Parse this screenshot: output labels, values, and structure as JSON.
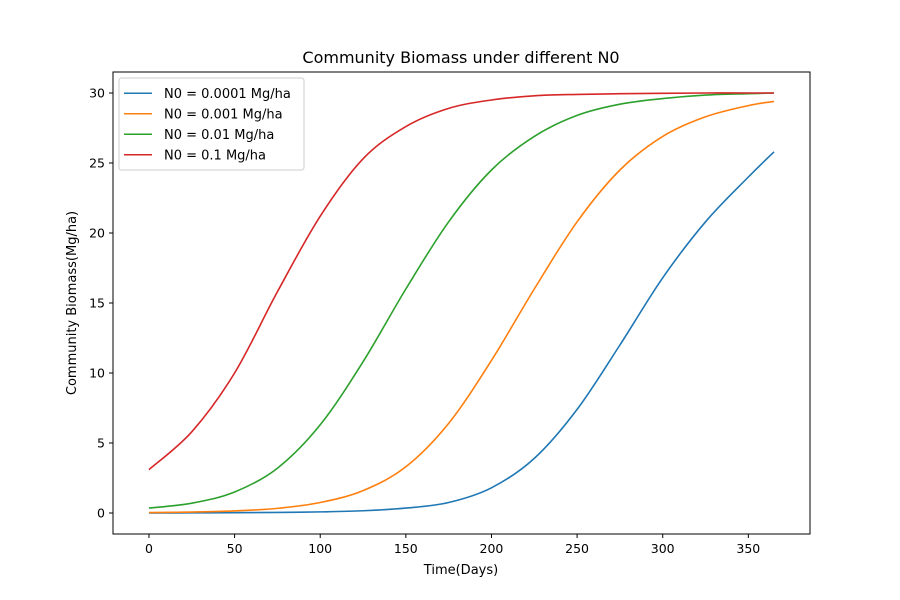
{
  "chart_data": {
    "type": "line",
    "title": "Community Biomass under different N0",
    "xlabel": "Time(Days)",
    "ylabel": "Community Biomass(Mg/ha)",
    "xlim": [
      -21,
      386
    ],
    "ylim": [
      -1.5,
      31.5
    ],
    "xticks": [
      0,
      50,
      100,
      150,
      200,
      250,
      300,
      350
    ],
    "yticks": [
      0,
      5,
      10,
      15,
      20,
      25,
      30
    ],
    "grid": false,
    "legend_position": "top-left",
    "series": [
      {
        "name": "N0 = 0.0001 Mg/ha",
        "color": "#1f77b4",
        "x": [
          0,
          25,
          50,
          75,
          100,
          125,
          150,
          175,
          200,
          225,
          250,
          275,
          300,
          325,
          350,
          365
        ],
        "y": [
          0.0,
          0.01,
          0.02,
          0.04,
          0.08,
          0.16,
          0.35,
          0.75,
          1.8,
          3.9,
          7.4,
          12.0,
          16.8,
          20.8,
          24.0,
          25.8
        ]
      },
      {
        "name": "N0 = 0.001 Mg/ha",
        "color": "#ff7f0e",
        "x": [
          0,
          25,
          50,
          75,
          100,
          125,
          150,
          175,
          200,
          225,
          250,
          275,
          300,
          325,
          350,
          365
        ],
        "y": [
          0.03,
          0.07,
          0.15,
          0.33,
          0.75,
          1.6,
          3.3,
          6.4,
          10.9,
          16.0,
          20.8,
          24.5,
          26.9,
          28.3,
          29.1,
          29.4
        ]
      },
      {
        "name": "N0 = 0.01 Mg/ha",
        "color": "#2ca02c",
        "x": [
          0,
          25,
          50,
          75,
          100,
          125,
          150,
          175,
          200,
          225,
          250,
          275,
          300,
          325,
          350,
          365
        ],
        "y": [
          0.35,
          0.7,
          1.5,
          3.2,
          6.3,
          10.8,
          16.0,
          20.8,
          24.5,
          26.9,
          28.4,
          29.2,
          29.6,
          29.85,
          29.95,
          30.0
        ]
      },
      {
        "name": "N0 = 0.1 Mg/ha",
        "color": "#d62728",
        "x": [
          0,
          25,
          50,
          75,
          100,
          125,
          150,
          175,
          200,
          225,
          250,
          275,
          300,
          325,
          350,
          365
        ],
        "y": [
          3.1,
          5.8,
          10.0,
          15.8,
          21.2,
          25.3,
          27.6,
          28.9,
          29.5,
          29.8,
          29.9,
          29.95,
          29.98,
          30.0,
          30.0,
          30.0
        ]
      }
    ]
  }
}
